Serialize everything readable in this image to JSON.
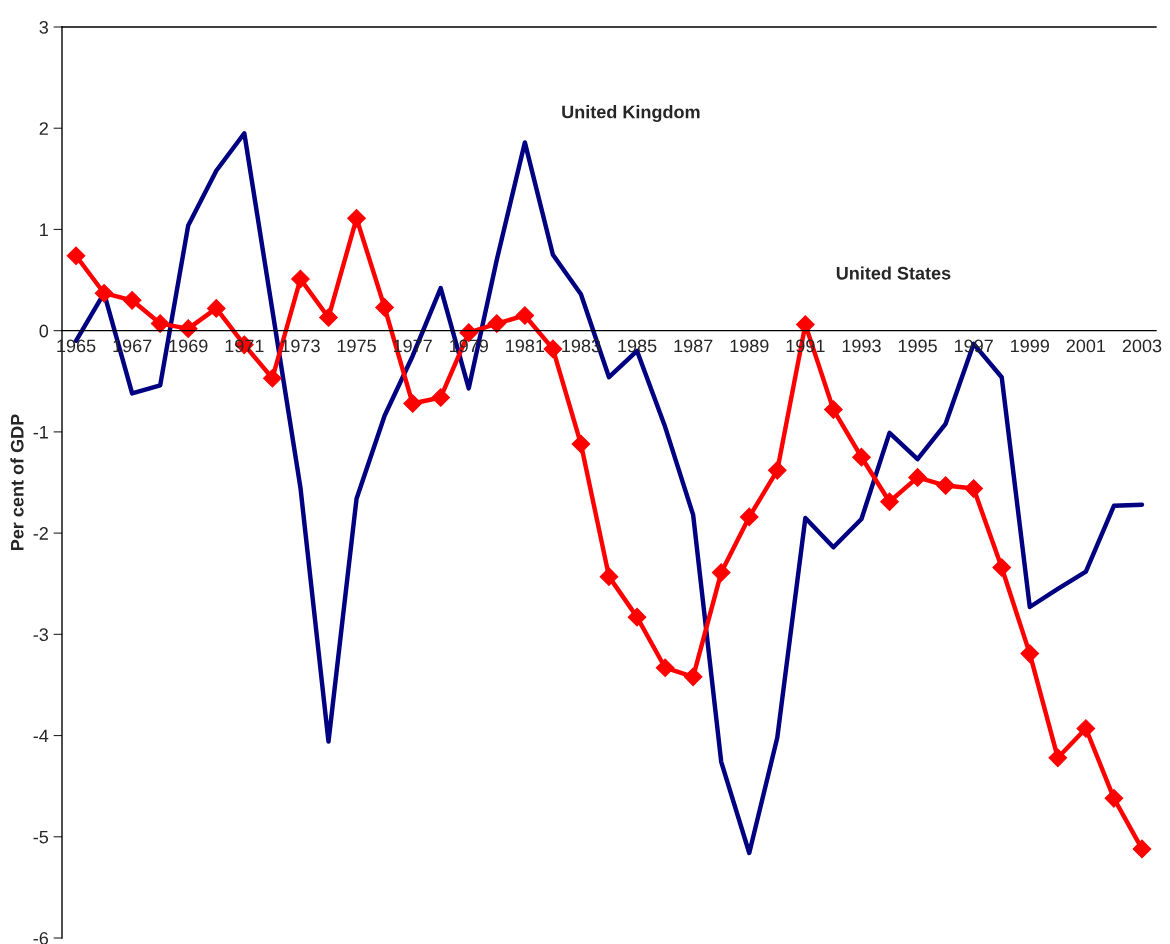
{
  "chart_data": {
    "type": "line",
    "ylabel": "Per cent of GDP",
    "categories": [
      "1965",
      null,
      "1967",
      null,
      "1969",
      null,
      "1971",
      null,
      "1973",
      null,
      "1975",
      null,
      "1977",
      null,
      "1979",
      null,
      "1981",
      null,
      "1983",
      null,
      "1985",
      null,
      "1987",
      null,
      "1989",
      null,
      "1991",
      null,
      "1993",
      null,
      "1995",
      null,
      "1997",
      null,
      "1999",
      null,
      "2001",
      null,
      "2003"
    ],
    "series": [
      {
        "name": "United Kingdom",
        "color": "#000080",
        "marker": "none",
        "values": [
          -0.1,
          0.37,
          -0.62,
          -0.54,
          1.04,
          1.58,
          1.95,
          0.2,
          -1.55,
          -4.06,
          -1.66,
          -0.84,
          -0.25,
          0.42,
          -0.57,
          0.7,
          1.86,
          0.75,
          0.36,
          -0.46,
          -0.2,
          -0.95,
          -1.82,
          -4.26,
          -5.16,
          -4.02,
          -1.85,
          -2.14,
          -1.86,
          -1.01,
          -1.27,
          -0.92,
          -0.13,
          -0.46,
          -2.73,
          -2.55,
          -2.38,
          -1.73,
          -1.72
        ]
      },
      {
        "name": "United States",
        "color": "#ff0000",
        "marker": "diamond",
        "values": [
          0.74,
          0.37,
          0.3,
          0.07,
          0.02,
          0.22,
          -0.14,
          -0.47,
          0.51,
          0.13,
          1.11,
          0.23,
          -0.72,
          -0.66,
          -0.02,
          0.07,
          0.15,
          -0.18,
          -1.12,
          -2.43,
          -2.83,
          -3.33,
          -3.42,
          -2.39,
          -1.84,
          -1.38,
          0.06,
          -0.78,
          -1.25,
          -1.69,
          -1.45,
          -1.53,
          -1.56,
          -2.34,
          -3.19,
          -4.22,
          -3.93,
          -4.62,
          -5.12
        ]
      }
    ],
    "ylim": [
      -6,
      3
    ],
    "yticks": [
      -6,
      -5,
      -4,
      -3,
      -2,
      -1,
      0,
      1,
      2,
      3
    ],
    "grid": false,
    "legend": false
  }
}
